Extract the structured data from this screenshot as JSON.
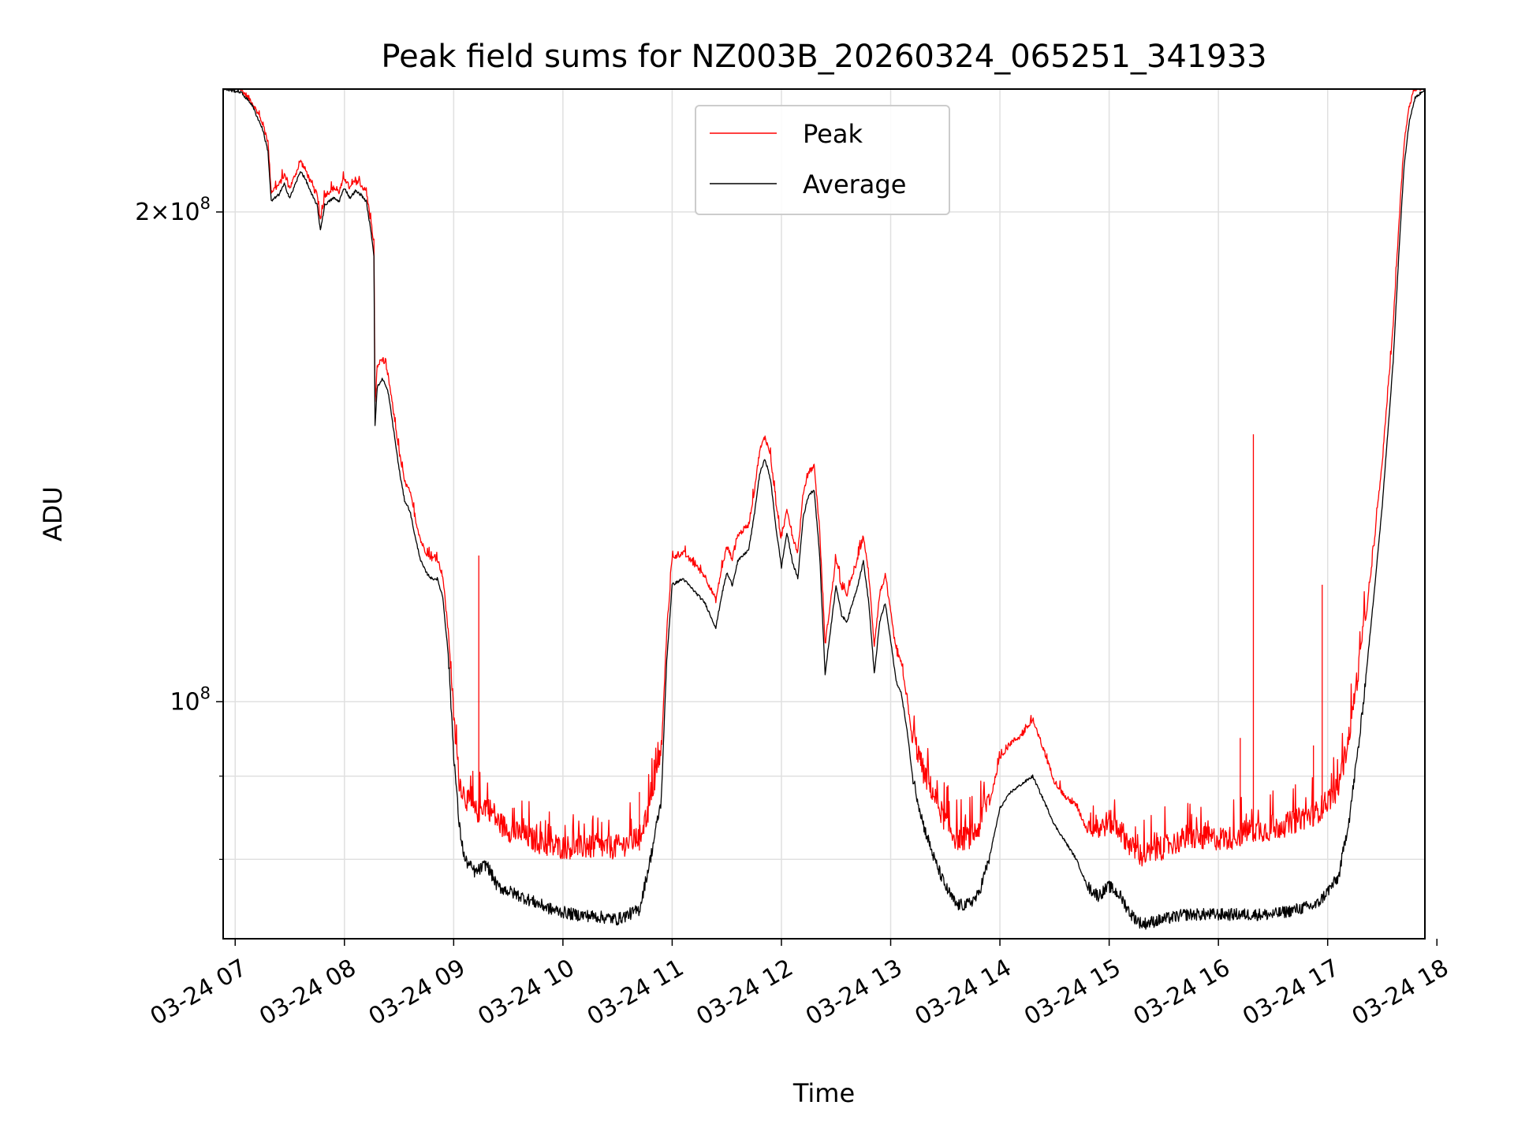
{
  "chart_data": {
    "type": "line",
    "title": "Peak field sums for NZ003B_20260324_065251_341933",
    "xlabel": "Time",
    "ylabel": "ADU",
    "yscale": "log",
    "grid": true,
    "legend_position": "top-center",
    "xlim": [
      6.89,
      17.89
    ],
    "ylim": [
      71500000,
      238000000
    ],
    "x_ticks": [
      {
        "value": 7,
        "label": "03-24 07"
      },
      {
        "value": 8,
        "label": "03-24 08"
      },
      {
        "value": 9,
        "label": "03-24 09"
      },
      {
        "value": 10,
        "label": "03-24 10"
      },
      {
        "value": 11,
        "label": "03-24 11"
      },
      {
        "value": 12,
        "label": "03-24 12"
      },
      {
        "value": 13,
        "label": "03-24 13"
      },
      {
        "value": 14,
        "label": "03-24 14"
      },
      {
        "value": 15,
        "label": "03-24 15"
      },
      {
        "value": 16,
        "label": "03-24 16"
      },
      {
        "value": 17,
        "label": "03-24 17"
      },
      {
        "value": 18,
        "label": "03-24 18"
      }
    ],
    "y_major_ticks": [
      {
        "value": 100000000,
        "base": "10",
        "exp": "8",
        "mantissa": ""
      },
      {
        "value": 200000000,
        "base": "10",
        "exp": "8",
        "mantissa": "2×"
      }
    ],
    "y_minor_ticks": [
      80000000,
      90000000
    ],
    "series": [
      {
        "name": "Peak",
        "color": "#ff0000",
        "keypoints": [
          [
            6.89,
            238000000
          ],
          [
            7.05,
            237000000
          ],
          [
            7.15,
            233000000
          ],
          [
            7.25,
            226000000
          ],
          [
            7.3,
            220000000
          ],
          [
            7.33,
            205000000
          ],
          [
            7.4,
            207000000
          ],
          [
            7.45,
            210000000
          ],
          [
            7.5,
            206000000
          ],
          [
            7.55,
            210000000
          ],
          [
            7.6,
            214000000
          ],
          [
            7.65,
            211000000
          ],
          [
            7.7,
            207000000
          ],
          [
            7.75,
            204000000
          ],
          [
            7.78,
            197000000
          ],
          [
            7.82,
            204000000
          ],
          [
            7.9,
            206000000
          ],
          [
            7.95,
            205000000
          ],
          [
            8.0,
            209000000
          ],
          [
            8.05,
            206000000
          ],
          [
            8.1,
            208000000
          ],
          [
            8.15,
            207000000
          ],
          [
            8.2,
            205000000
          ],
          [
            8.25,
            195000000
          ],
          [
            8.27,
            190000000
          ],
          [
            8.28,
            152000000
          ],
          [
            8.3,
            160000000
          ],
          [
            8.35,
            162000000
          ],
          [
            8.4,
            158000000
          ],
          [
            8.45,
            150000000
          ],
          [
            8.5,
            142000000
          ],
          [
            8.55,
            136000000
          ],
          [
            8.6,
            134000000
          ],
          [
            8.65,
            129000000
          ],
          [
            8.7,
            125000000
          ],
          [
            8.75,
            123000000
          ],
          [
            8.8,
            122000000
          ],
          [
            8.85,
            122000000
          ],
          [
            8.9,
            119000000
          ],
          [
            8.95,
            110000000
          ],
          [
            9.0,
            96000000
          ],
          [
            9.05,
            88000000
          ],
          [
            9.1,
            86000000
          ],
          [
            9.2,
            84000000
          ],
          [
            9.3,
            85000000
          ],
          [
            9.4,
            83000000
          ],
          [
            9.5,
            82000000
          ],
          [
            9.7,
            81000000
          ],
          [
            9.9,
            80000000
          ],
          [
            10.1,
            80000000
          ],
          [
            10.3,
            80000000
          ],
          [
            10.5,
            80000000
          ],
          [
            10.7,
            81000000
          ],
          [
            10.8,
            85000000
          ],
          [
            10.9,
            92000000
          ],
          [
            10.95,
            110000000
          ],
          [
            11.0,
            122000000
          ],
          [
            11.1,
            123000000
          ],
          [
            11.2,
            121000000
          ],
          [
            11.3,
            119000000
          ],
          [
            11.35,
            117000000
          ],
          [
            11.4,
            115000000
          ],
          [
            11.45,
            120000000
          ],
          [
            11.5,
            124000000
          ],
          [
            11.55,
            122000000
          ],
          [
            11.6,
            126000000
          ],
          [
            11.65,
            127000000
          ],
          [
            11.7,
            128000000
          ],
          [
            11.75,
            134000000
          ],
          [
            11.8,
            142000000
          ],
          [
            11.85,
            145000000
          ],
          [
            11.9,
            141000000
          ],
          [
            11.95,
            132000000
          ],
          [
            12.0,
            125000000
          ],
          [
            12.05,
            131000000
          ],
          [
            12.1,
            126000000
          ],
          [
            12.15,
            123000000
          ],
          [
            12.2,
            134000000
          ],
          [
            12.25,
            138000000
          ],
          [
            12.3,
            139000000
          ],
          [
            12.35,
            127000000
          ],
          [
            12.4,
            108000000
          ],
          [
            12.5,
            122000000
          ],
          [
            12.55,
            117000000
          ],
          [
            12.6,
            116000000
          ],
          [
            12.7,
            122000000
          ],
          [
            12.75,
            126000000
          ],
          [
            12.8,
            119000000
          ],
          [
            12.85,
            108000000
          ],
          [
            12.9,
            116000000
          ],
          [
            12.95,
            119000000
          ],
          [
            13.0,
            113000000
          ],
          [
            13.05,
            107000000
          ],
          [
            13.1,
            105000000
          ],
          [
            13.15,
            100000000
          ],
          [
            13.2,
            94000000
          ],
          [
            13.3,
            89000000
          ],
          [
            13.4,
            86000000
          ],
          [
            13.5,
            83000000
          ],
          [
            13.6,
            81000000
          ],
          [
            13.7,
            81000000
          ],
          [
            13.8,
            82000000
          ],
          [
            13.9,
            86000000
          ],
          [
            14.0,
            92000000
          ],
          [
            14.1,
            94000000
          ],
          [
            14.2,
            95000000
          ],
          [
            14.3,
            97000000
          ],
          [
            14.4,
            93000000
          ],
          [
            14.5,
            89000000
          ],
          [
            14.6,
            87000000
          ],
          [
            14.7,
            86000000
          ],
          [
            14.8,
            83000000
          ],
          [
            14.9,
            82000000
          ],
          [
            15.0,
            83000000
          ],
          [
            15.1,
            82000000
          ],
          [
            15.2,
            80000000
          ],
          [
            15.3,
            79000000
          ],
          [
            15.5,
            80000000
          ],
          [
            15.7,
            81000000
          ],
          [
            15.9,
            81000000
          ],
          [
            16.1,
            81000000
          ],
          [
            16.3,
            82000000
          ],
          [
            16.5,
            82000000
          ],
          [
            16.7,
            83000000
          ],
          [
            16.9,
            84000000
          ],
          [
            17.1,
            87000000
          ],
          [
            17.2,
            94000000
          ],
          [
            17.3,
            105000000
          ],
          [
            17.4,
            120000000
          ],
          [
            17.5,
            140000000
          ],
          [
            17.6,
            170000000
          ],
          [
            17.65,
            195000000
          ],
          [
            17.7,
            220000000
          ],
          [
            17.75,
            232000000
          ],
          [
            17.8,
            237000000
          ],
          [
            17.89,
            238000000
          ]
        ]
      },
      {
        "name": "Average",
        "color": "#000000",
        "keypoints": [
          [
            6.89,
            238000000
          ],
          [
            7.05,
            237000000
          ],
          [
            7.15,
            233000000
          ],
          [
            7.25,
            225000000
          ],
          [
            7.3,
            218000000
          ],
          [
            7.33,
            203000000
          ],
          [
            7.4,
            205000000
          ],
          [
            7.45,
            208000000
          ],
          [
            7.5,
            204000000
          ],
          [
            7.55,
            208000000
          ],
          [
            7.6,
            212000000
          ],
          [
            7.65,
            209000000
          ],
          [
            7.7,
            205000000
          ],
          [
            7.75,
            202000000
          ],
          [
            7.78,
            195000000
          ],
          [
            7.82,
            202000000
          ],
          [
            7.9,
            204000000
          ],
          [
            7.95,
            203000000
          ],
          [
            8.0,
            207000000
          ],
          [
            8.05,
            204000000
          ],
          [
            8.1,
            206000000
          ],
          [
            8.15,
            205000000
          ],
          [
            8.2,
            203000000
          ],
          [
            8.25,
            193000000
          ],
          [
            8.27,
            188000000
          ],
          [
            8.28,
            148000000
          ],
          [
            8.3,
            156000000
          ],
          [
            8.35,
            158000000
          ],
          [
            8.4,
            155000000
          ],
          [
            8.45,
            147000000
          ],
          [
            8.5,
            139000000
          ],
          [
            8.55,
            133000000
          ],
          [
            8.6,
            131000000
          ],
          [
            8.65,
            126000000
          ],
          [
            8.7,
            122000000
          ],
          [
            8.75,
            120000000
          ],
          [
            8.8,
            119000000
          ],
          [
            8.85,
            119000000
          ],
          [
            8.9,
            116000000
          ],
          [
            8.95,
            107000000
          ],
          [
            9.0,
            93000000
          ],
          [
            9.05,
            84000000
          ],
          [
            9.1,
            80000000
          ],
          [
            9.2,
            78500000
          ],
          [
            9.3,
            79500000
          ],
          [
            9.4,
            77000000
          ],
          [
            9.5,
            76500000
          ],
          [
            9.7,
            75500000
          ],
          [
            9.9,
            74500000
          ],
          [
            10.1,
            74000000
          ],
          [
            10.3,
            73800000
          ],
          [
            10.5,
            73500000
          ],
          [
            10.7,
            74500000
          ],
          [
            10.8,
            80000000
          ],
          [
            10.9,
            87000000
          ],
          [
            10.95,
            106000000
          ],
          [
            11.0,
            118000000
          ],
          [
            11.1,
            119000000
          ],
          [
            11.2,
            117000000
          ],
          [
            11.3,
            115000000
          ],
          [
            11.35,
            113000000
          ],
          [
            11.4,
            111000000
          ],
          [
            11.45,
            116000000
          ],
          [
            11.5,
            120000000
          ],
          [
            11.55,
            118000000
          ],
          [
            11.6,
            122000000
          ],
          [
            11.65,
            123000000
          ],
          [
            11.7,
            124000000
          ],
          [
            11.75,
            130000000
          ],
          [
            11.8,
            138000000
          ],
          [
            11.85,
            141000000
          ],
          [
            11.9,
            137000000
          ],
          [
            11.95,
            128000000
          ],
          [
            12.0,
            121000000
          ],
          [
            12.05,
            127000000
          ],
          [
            12.1,
            122000000
          ],
          [
            12.15,
            119000000
          ],
          [
            12.2,
            130000000
          ],
          [
            12.25,
            134000000
          ],
          [
            12.3,
            135000000
          ],
          [
            12.35,
            123000000
          ],
          [
            12.4,
            104000000
          ],
          [
            12.5,
            118000000
          ],
          [
            12.55,
            113000000
          ],
          [
            12.6,
            112000000
          ],
          [
            12.7,
            118000000
          ],
          [
            12.75,
            122000000
          ],
          [
            12.8,
            115000000
          ],
          [
            12.85,
            104000000
          ],
          [
            12.9,
            112000000
          ],
          [
            12.95,
            115000000
          ],
          [
            13.0,
            109000000
          ],
          [
            13.05,
            103000000
          ],
          [
            13.1,
            101000000
          ],
          [
            13.15,
            96000000
          ],
          [
            13.2,
            90000000
          ],
          [
            13.3,
            84000000
          ],
          [
            13.4,
            80000000
          ],
          [
            13.5,
            77000000
          ],
          [
            13.6,
            75000000
          ],
          [
            13.7,
            75000000
          ],
          [
            13.8,
            76000000
          ],
          [
            13.9,
            80000000
          ],
          [
            14.0,
            86000000
          ],
          [
            14.1,
            88000000
          ],
          [
            14.2,
            89000000
          ],
          [
            14.3,
            90000000
          ],
          [
            14.4,
            87000000
          ],
          [
            14.5,
            84000000
          ],
          [
            14.6,
            82000000
          ],
          [
            14.7,
            80000000
          ],
          [
            14.8,
            77000000
          ],
          [
            14.9,
            76000000
          ],
          [
            15.0,
            77000000
          ],
          [
            15.1,
            76000000
          ],
          [
            15.2,
            74000000
          ],
          [
            15.3,
            73000000
          ],
          [
            15.5,
            73500000
          ],
          [
            15.7,
            74000000
          ],
          [
            15.9,
            74000000
          ],
          [
            16.1,
            74000000
          ],
          [
            16.3,
            74000000
          ],
          [
            16.5,
            74000000
          ],
          [
            16.7,
            74500000
          ],
          [
            16.9,
            75000000
          ],
          [
            17.1,
            78000000
          ],
          [
            17.2,
            85000000
          ],
          [
            17.3,
            96000000
          ],
          [
            17.4,
            112000000
          ],
          [
            17.5,
            132000000
          ],
          [
            17.6,
            162000000
          ],
          [
            17.65,
            188000000
          ],
          [
            17.7,
            214000000
          ],
          [
            17.75,
            228000000
          ],
          [
            17.8,
            235000000
          ],
          [
            17.89,
            238000000
          ]
        ]
      }
    ],
    "spikes": [
      {
        "x": 9.23,
        "value": 123000000
      },
      {
        "x": 10.7,
        "value": 88000000
      },
      {
        "x": 16.2,
        "value": 95000000
      },
      {
        "x": 16.32,
        "value": 146000000
      },
      {
        "x": 16.95,
        "value": 118000000
      },
      {
        "x": 16.87,
        "value": 94000000
      }
    ]
  }
}
